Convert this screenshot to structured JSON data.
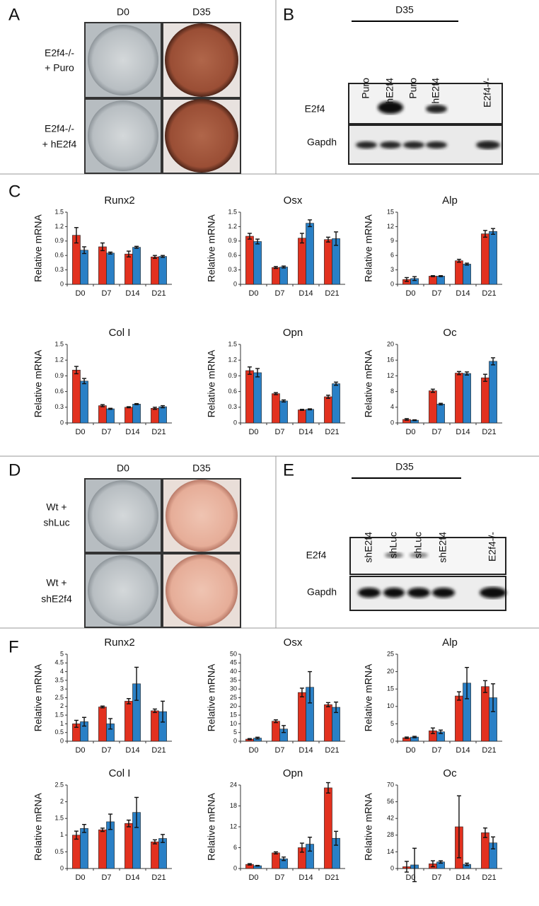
{
  "panel_a": {
    "letter": "A",
    "columns": [
      "D0",
      "D35"
    ],
    "rows": [
      [
        "E2f4-/-",
        "+ Puro"
      ],
      [
        "E2f4-/-",
        "+ hE2f4"
      ]
    ]
  },
  "panel_b": {
    "letter": "B",
    "group": "D35",
    "lanes": [
      "Puro",
      "hE2f4",
      "Puro",
      "hE2f4",
      "E2f4-/-"
    ],
    "bands": [
      "E2f4",
      "Gapdh"
    ]
  },
  "panel_c": {
    "letter": "C"
  },
  "panel_d": {
    "letter": "D",
    "columns": [
      "D0",
      "D35"
    ],
    "rows": [
      [
        "Wt +",
        "shLuc"
      ],
      [
        "Wt +",
        "shE2f4"
      ]
    ]
  },
  "panel_e": {
    "letter": "E",
    "group": "D35",
    "lanes": [
      "shE2f4",
      "shLuc",
      "shLuc",
      "shE2f4",
      "E2f4-/-"
    ],
    "bands": [
      "E2f4",
      "Gapdh"
    ]
  },
  "panel_f": {
    "letter": "F"
  },
  "chart_data": [
    {
      "type": "bar",
      "title": "Runx2",
      "ylabel": "Relative mRNA",
      "categories": [
        "D0",
        "D7",
        "D14",
        "D21"
      ],
      "ylim": [
        0,
        1.5
      ],
      "yticks": [
        0,
        0.3,
        0.6,
        0.9,
        1.2,
        1.5
      ],
      "series": [
        {
          "color": "#e2311f",
          "values": [
            1.02,
            0.78,
            0.63,
            0.57
          ],
          "errors": [
            0.16,
            0.08,
            0.06,
            0.03
          ]
        },
        {
          "color": "#2a80c6",
          "values": [
            0.71,
            0.65,
            0.77,
            0.58
          ],
          "errors": [
            0.07,
            0.02,
            0.02,
            0.02
          ]
        }
      ]
    },
    {
      "type": "bar",
      "title": "Osx",
      "ylabel": "Relative mRNA",
      "categories": [
        "D0",
        "D7",
        "D14",
        "D21"
      ],
      "ylim": [
        0,
        1.5
      ],
      "yticks": [
        0,
        0.3,
        0.6,
        0.9,
        1.2,
        1.5
      ],
      "series": [
        {
          "color": "#e2311f",
          "values": [
            1.0,
            0.35,
            0.96,
            0.93
          ],
          "errors": [
            0.06,
            0.02,
            0.1,
            0.05
          ]
        },
        {
          "color": "#2a80c6",
          "values": [
            0.89,
            0.36,
            1.27,
            0.95
          ],
          "errors": [
            0.05,
            0.02,
            0.07,
            0.14
          ]
        }
      ]
    },
    {
      "type": "bar",
      "title": "Alp",
      "ylabel": "Relative mRNA",
      "categories": [
        "D0",
        "D7",
        "D14",
        "D21"
      ],
      "ylim": [
        0,
        15
      ],
      "yticks": [
        0,
        3,
        6,
        9,
        12,
        15
      ],
      "series": [
        {
          "color": "#e2311f",
          "values": [
            1.0,
            1.7,
            4.9,
            10.5
          ],
          "errors": [
            0.4,
            0.1,
            0.3,
            0.7
          ]
        },
        {
          "color": "#2a80c6",
          "values": [
            1.2,
            1.7,
            4.2,
            11.0
          ],
          "errors": [
            0.4,
            0.1,
            0.2,
            0.6
          ]
        }
      ]
    },
    {
      "type": "bar",
      "title": "Col I",
      "ylabel": "Relative mRNA",
      "categories": [
        "D0",
        "D7",
        "D14",
        "D21"
      ],
      "ylim": [
        0,
        1.5
      ],
      "yticks": [
        0,
        0.3,
        0.6,
        0.9,
        1.2,
        1.5
      ],
      "series": [
        {
          "color": "#e2311f",
          "values": [
            1.01,
            0.33,
            0.3,
            0.28
          ],
          "errors": [
            0.07,
            0.02,
            0.01,
            0.02
          ]
        },
        {
          "color": "#2a80c6",
          "values": [
            0.8,
            0.27,
            0.36,
            0.31
          ],
          "errors": [
            0.05,
            0.01,
            0.01,
            0.02
          ]
        }
      ]
    },
    {
      "type": "bar",
      "title": "Opn",
      "ylabel": "Relative mRNA",
      "categories": [
        "D0",
        "D7",
        "D14",
        "D21"
      ],
      "ylim": [
        0,
        1.5
      ],
      "yticks": [
        0,
        0.3,
        0.6,
        0.9,
        1.2,
        1.5
      ],
      "series": [
        {
          "color": "#e2311f",
          "values": [
            1.0,
            0.56,
            0.25,
            0.5
          ],
          "errors": [
            0.07,
            0.02,
            0.01,
            0.03
          ]
        },
        {
          "color": "#2a80c6",
          "values": [
            0.96,
            0.42,
            0.26,
            0.75
          ],
          "errors": [
            0.08,
            0.02,
            0.01,
            0.03
          ]
        }
      ]
    },
    {
      "type": "bar",
      "title": "Oc",
      "ylabel": "Relative mRNA",
      "categories": [
        "D0",
        "D7",
        "D14",
        "D21"
      ],
      "ylim": [
        0,
        20
      ],
      "yticks": [
        0,
        4,
        8,
        12,
        16,
        20
      ],
      "series": [
        {
          "color": "#e2311f",
          "values": [
            0.9,
            8.2,
            12.7,
            11.5
          ],
          "errors": [
            0.2,
            0.4,
            0.4,
            0.9
          ]
        },
        {
          "color": "#2a80c6",
          "values": [
            0.7,
            4.8,
            12.6,
            15.7
          ],
          "errors": [
            0.1,
            0.2,
            0.4,
            0.9
          ]
        }
      ]
    },
    {
      "type": "bar",
      "title": "Runx2",
      "ylabel": "Relative mRNA",
      "categories": [
        "D0",
        "D7",
        "D14",
        "D21"
      ],
      "ylim": [
        0,
        5
      ],
      "yticks": [
        0,
        0.5,
        1,
        1.5,
        2,
        2.5,
        3,
        3.5,
        4,
        4.5,
        5
      ],
      "series": [
        {
          "color": "#e2311f",
          "values": [
            1.0,
            1.97,
            2.3,
            1.75
          ],
          "errors": [
            0.2,
            0.05,
            0.15,
            0.1
          ]
        },
        {
          "color": "#2a80c6",
          "values": [
            1.12,
            1.0,
            3.3,
            1.7
          ],
          "errors": [
            0.25,
            0.3,
            0.95,
            0.6
          ]
        }
      ]
    },
    {
      "type": "bar",
      "title": "Osx",
      "ylabel": "Relative mRNA",
      "categories": [
        "D0",
        "D7",
        "D14",
        "D21"
      ],
      "ylim": [
        0,
        50
      ],
      "yticks": [
        0,
        5,
        10,
        15,
        20,
        25,
        30,
        35,
        40,
        45,
        50
      ],
      "series": [
        {
          "color": "#e2311f",
          "values": [
            1.2,
            11.5,
            28,
            21
          ],
          "errors": [
            0.3,
            0.8,
            2.5,
            1.2
          ]
        },
        {
          "color": "#2a80c6",
          "values": [
            1.8,
            7,
            31,
            19.5
          ],
          "errors": [
            0.5,
            2,
            9,
            3
          ]
        }
      ]
    },
    {
      "type": "bar",
      "title": "Alp",
      "ylabel": "Relative mRNA",
      "categories": [
        "D0",
        "D7",
        "D14",
        "D21"
      ],
      "ylim": [
        0,
        25
      ],
      "yticks": [
        0,
        5,
        10,
        15,
        20,
        25
      ],
      "series": [
        {
          "color": "#e2311f",
          "values": [
            1,
            3,
            13,
            15.7
          ],
          "errors": [
            0.2,
            0.8,
            1.2,
            1.7
          ]
        },
        {
          "color": "#2a80c6",
          "values": [
            1.2,
            2.7,
            16.7,
            12.5
          ],
          "errors": [
            0.2,
            0.5,
            4.5,
            4
          ]
        }
      ]
    },
    {
      "type": "bar",
      "title": "Col I",
      "ylabel": "Relative mRNA",
      "categories": [
        "D0",
        "D7",
        "D14",
        "D21"
      ],
      "ylim": [
        0,
        2.5
      ],
      "yticks": [
        0,
        0.5,
        1,
        1.5,
        2,
        2.5
      ],
      "series": [
        {
          "color": "#e2311f",
          "values": [
            1.0,
            1.16,
            1.35,
            0.8
          ],
          "errors": [
            0.12,
            0.05,
            0.1,
            0.06
          ]
        },
        {
          "color": "#2a80c6",
          "values": [
            1.2,
            1.4,
            1.68,
            0.9
          ],
          "errors": [
            0.12,
            0.23,
            0.45,
            0.12
          ]
        }
      ]
    },
    {
      "type": "bar",
      "title": "Opn",
      "ylabel": "Relative mRNA",
      "categories": [
        "D0",
        "D7",
        "D14",
        "D21"
      ],
      "ylim": [
        0,
        24
      ],
      "yticks": [
        0,
        6,
        12,
        18,
        24
      ],
      "series": [
        {
          "color": "#e2311f",
          "values": [
            1.2,
            4.5,
            6,
            23.2
          ],
          "errors": [
            0.2,
            0.3,
            1.3,
            1.5
          ]
        },
        {
          "color": "#2a80c6",
          "values": [
            0.8,
            2.8,
            7,
            8.7
          ],
          "errors": [
            0.1,
            0.5,
            2,
            2
          ]
        }
      ]
    },
    {
      "type": "bar",
      "title": "Oc",
      "ylabel": "Relative mRNA",
      "categories": [
        "D0",
        "D7",
        "D14",
        "D21"
      ],
      "ylim": [
        0,
        70
      ],
      "yticks": [
        0,
        14,
        28,
        42,
        56,
        70
      ],
      "series": [
        {
          "color": "#e2311f",
          "values": [
            1.5,
            4,
            35,
            30
          ],
          "errors": [
            4.5,
            2.5,
            26,
            4
          ]
        },
        {
          "color": "#2a80c6",
          "values": [
            3,
            5.5,
            3.5,
            21.5
          ],
          "errors": [
            14,
            1,
            1,
            5
          ]
        }
      ]
    }
  ]
}
